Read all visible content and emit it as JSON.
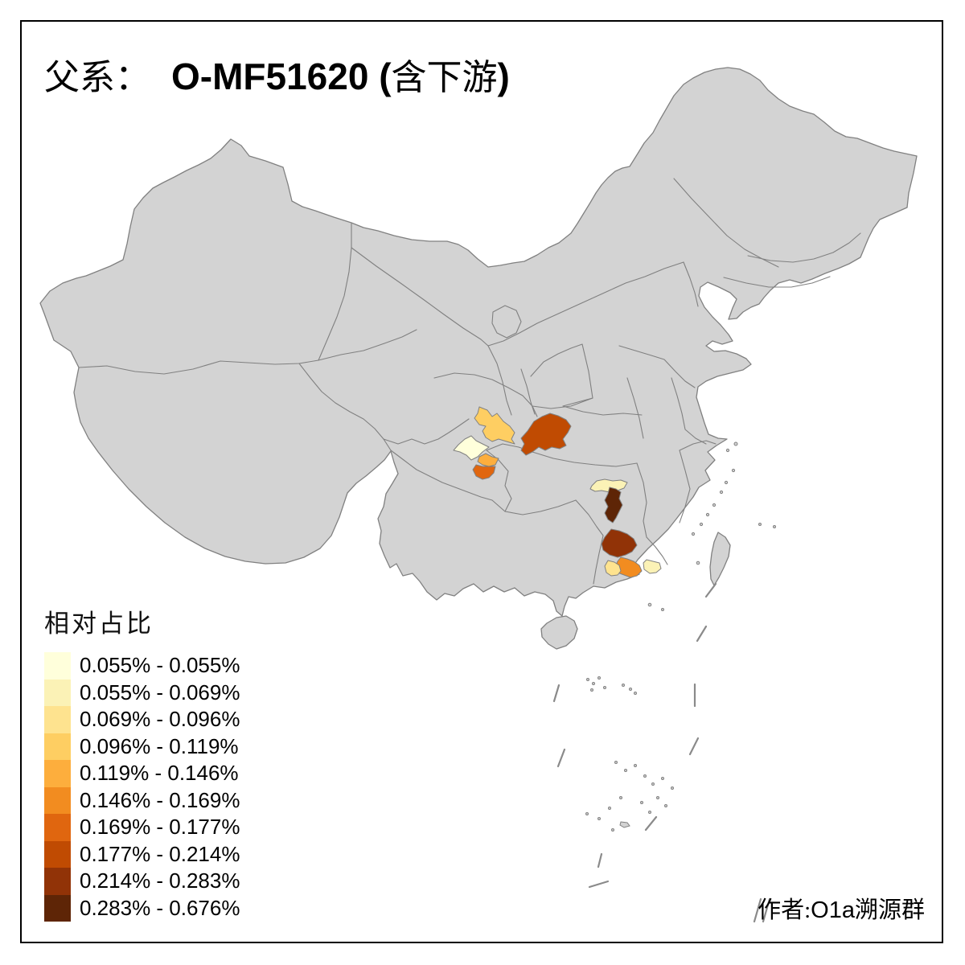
{
  "title": {
    "prefix": "父系：",
    "code": "O-MF51620",
    "open_paren": " (",
    "downstream": "含下游",
    "close_paren": ")"
  },
  "legend": {
    "title": "相对占比",
    "classes": [
      {
        "label": "0.055% - 0.055%",
        "color": "#FFFFDB"
      },
      {
        "label": "0.055% - 0.069%",
        "color": "#FBF2B6"
      },
      {
        "label": "0.069% - 0.096%",
        "color": "#FEE38F"
      },
      {
        "label": "0.096% - 0.119%",
        "color": "#FECE62"
      },
      {
        "label": "0.119% - 0.146%",
        "color": "#FDAE3D"
      },
      {
        "label": "0.146% - 0.169%",
        "color": "#F28C20"
      },
      {
        "label": "0.169% - 0.177%",
        "color": "#E0660F"
      },
      {
        "label": "0.177% - 0.214%",
        "color": "#C04B02"
      },
      {
        "label": "0.214% - 0.283%",
        "color": "#913307"
      },
      {
        "label": "0.283% - 0.676%",
        "color": "#5E2506"
      }
    ]
  },
  "attribution": {
    "label": "作者:",
    "group": "O1a",
    "name": "溯源群"
  },
  "map": {
    "colors": {
      "background": "#FFFFFF",
      "land": "#D3D3D3",
      "boundary": "#808080",
      "frame": "#000000"
    },
    "regions": [
      {
        "id": "sichuan-northeast",
        "class": 3
      },
      {
        "id": "chengdu-plain",
        "class": 0
      },
      {
        "id": "sichuan-south-upper",
        "class": 4
      },
      {
        "id": "sichuan-south-lower",
        "class": 6
      },
      {
        "id": "chongqing",
        "class": 7
      },
      {
        "id": "central-hunan",
        "class": 1
      },
      {
        "id": "southern-hunan",
        "class": 9
      },
      {
        "id": "northern-guangdong",
        "class": 8
      },
      {
        "id": "pearl-river-delta",
        "class": 5
      },
      {
        "id": "western-guangdong",
        "class": 2
      },
      {
        "id": "eastern-guangdong",
        "class": 1
      }
    ]
  }
}
